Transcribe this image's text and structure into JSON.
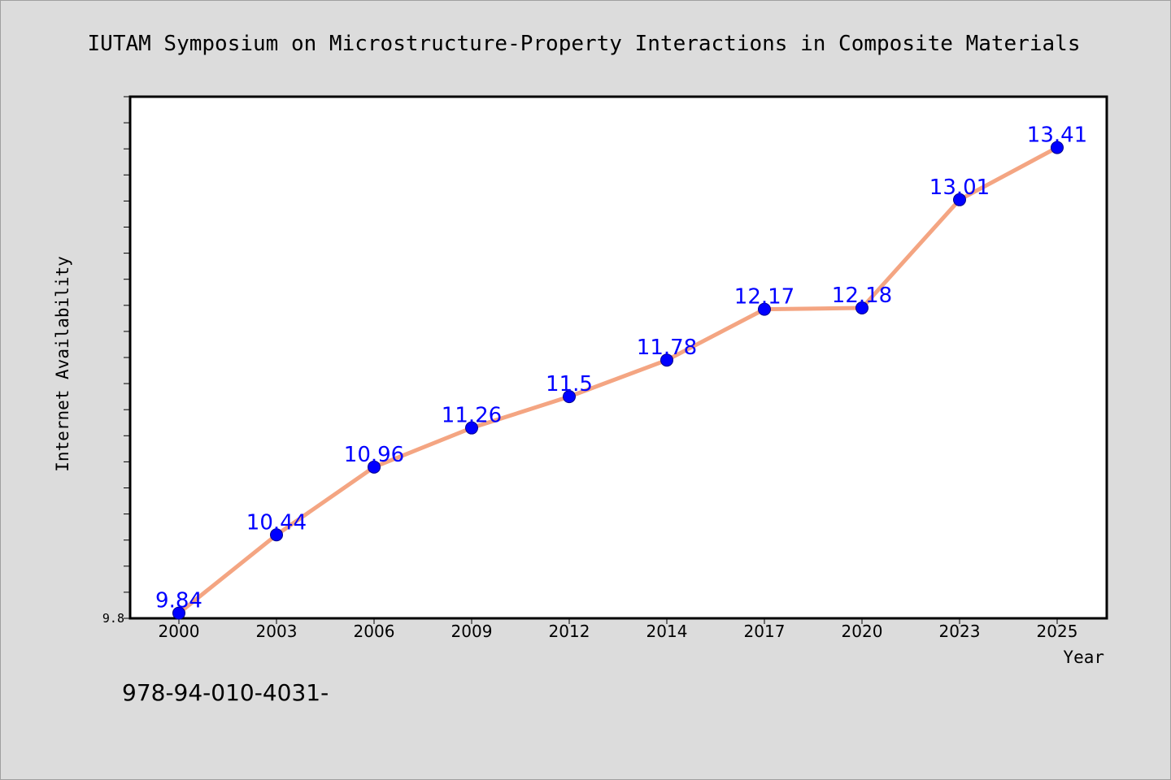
{
  "chart_data": {
    "type": "line",
    "title": "IUTAM Symposium on Microstructure-Property Interactions in Composite Materials",
    "xlabel": "Year",
    "ylabel": "Internet Availability",
    "categories": [
      "2000",
      "2003",
      "2006",
      "2009",
      "2012",
      "2014",
      "2017",
      "2020",
      "2023",
      "2025"
    ],
    "values": [
      9.84,
      10.44,
      10.96,
      11.26,
      11.5,
      11.78,
      12.17,
      12.18,
      13.01,
      13.41
    ],
    "data_labels": [
      "9.84",
      "10.44",
      "10.96",
      "11.26",
      "11.5",
      "11.78",
      "12.17",
      "12.18",
      "13.01",
      "13.41"
    ],
    "yticks_labeled": [
      "9.8"
    ],
    "ylim": [
      9.8,
      13.8
    ],
    "grid": false,
    "colors": {
      "line": "#f4a582",
      "marker": "#0000ff",
      "label": "#0000ff"
    }
  },
  "footer_text": "978-94-010-4031-"
}
